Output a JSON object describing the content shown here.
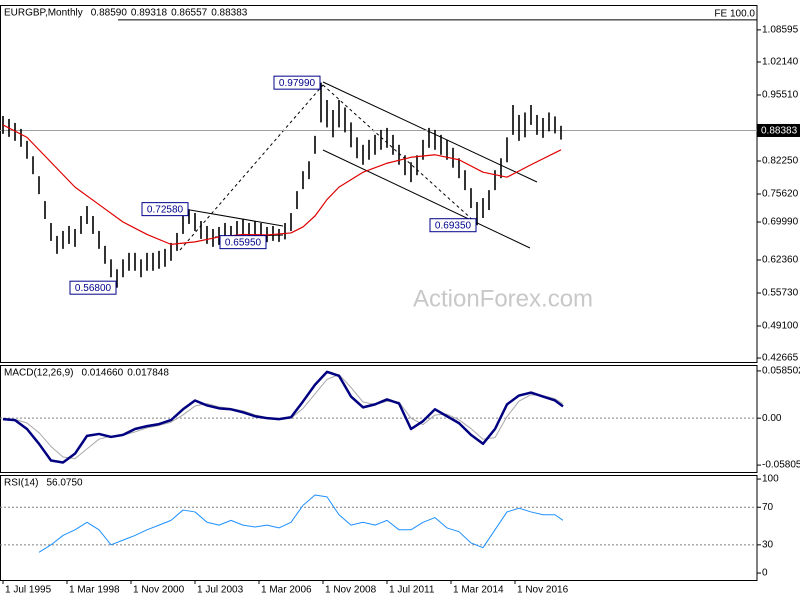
{
  "chart_data": [
    {
      "type": "hilo",
      "title": "EURGBP,Monthly",
      "readout": [
        {
          "value": 0.8859,
          "label": "0.88590"
        },
        {
          "value": 0.89318,
          "label": "0.89318"
        },
        {
          "value": 0.86557,
          "label": "0.86557"
        },
        {
          "value": 0.88383,
          "label": "0.88383"
        }
      ],
      "xlim": [
        -1.5,
        377
      ],
      "ylim": [
        0.4187,
        1.1359
      ],
      "yticks": [
        1.08595,
        {
          "value": 1.0214,
          "label": "1.02140"
        },
        {
          "value": 0.9551,
          "label": "0.95510"
        },
        {
          "value": 0.8225,
          "label": "0.82250"
        },
        {
          "value": 0.7562,
          "label": "0.75620"
        },
        {
          "value": 0.6999,
          "label": "0.69990"
        },
        {
          "value": 0.6236,
          "label": "0.62360"
        },
        {
          "value": 0.5573,
          "label": "0.55730"
        },
        {
          "value": 0.491,
          "label": "0.49100"
        },
        0.42665
      ],
      "color": "#000000",
      "x": [
        0,
        3,
        6,
        9,
        12,
        15,
        18,
        21,
        24,
        27,
        30,
        33,
        36,
        39,
        42,
        45,
        48,
        51,
        54,
        57,
        60,
        63,
        66,
        69,
        72,
        75,
        78,
        81,
        84,
        87,
        90,
        93,
        96,
        99,
        102,
        105,
        108,
        111,
        114,
        117,
        120,
        123,
        126,
        129,
        132,
        135,
        138,
        141,
        144,
        147,
        150,
        153,
        156,
        159,
        162,
        165,
        168,
        171,
        174,
        177,
        180,
        183,
        186,
        189,
        192,
        195,
        198,
        201,
        204,
        207,
        210,
        213,
        216,
        219,
        222,
        225,
        228,
        231,
        234,
        237,
        240,
        243,
        246,
        249,
        252,
        255,
        258,
        261,
        264,
        267,
        270,
        273,
        276,
        279
      ],
      "high": [
        0.913,
        0.907,
        0.899,
        0.887,
        0.863,
        0.832,
        0.792,
        0.742,
        0.698,
        0.672,
        0.682,
        0.692,
        0.686,
        0.712,
        0.732,
        0.712,
        0.682,
        0.652,
        0.625,
        0.605,
        0.625,
        0.638,
        0.638,
        0.625,
        0.638,
        0.638,
        0.642,
        0.646,
        0.658,
        0.678,
        0.712,
        0.7258,
        0.718,
        0.702,
        0.692,
        0.686,
        0.69,
        0.698,
        0.692,
        0.702,
        0.706,
        0.698,
        0.702,
        0.698,
        0.69,
        0.692,
        0.686,
        0.698,
        0.718,
        0.762,
        0.802,
        0.822,
        0.873,
        0.9799,
        0.945,
        0.925,
        0.945,
        0.93,
        0.9,
        0.87,
        0.855,
        0.865,
        0.875,
        0.885,
        0.889,
        0.875,
        0.855,
        0.834,
        0.82,
        0.834,
        0.865,
        0.889,
        0.885,
        0.875,
        0.865,
        0.849,
        0.828,
        0.804,
        0.768,
        0.74,
        0.748,
        0.764,
        0.804,
        0.828,
        0.87,
        0.935,
        0.915,
        0.92,
        0.935,
        0.915,
        0.909,
        0.92,
        0.912,
        0.89318
      ],
      "low": [
        0.877,
        0.871,
        0.863,
        0.851,
        0.827,
        0.796,
        0.756,
        0.706,
        0.662,
        0.636,
        0.646,
        0.656,
        0.65,
        0.676,
        0.696,
        0.676,
        0.646,
        0.616,
        0.589,
        0.568,
        0.589,
        0.602,
        0.602,
        0.589,
        0.602,
        0.602,
        0.606,
        0.61,
        0.622,
        0.642,
        0.676,
        0.696,
        0.682,
        0.666,
        0.656,
        0.65,
        0.654,
        0.662,
        0.656,
        0.666,
        0.67,
        0.662,
        0.666,
        0.662,
        0.6595,
        0.662,
        0.66,
        0.665,
        0.682,
        0.726,
        0.766,
        0.786,
        0.837,
        0.9,
        0.89,
        0.87,
        0.89,
        0.88,
        0.85,
        0.828,
        0.815,
        0.825,
        0.835,
        0.845,
        0.849,
        0.835,
        0.815,
        0.794,
        0.78,
        0.794,
        0.825,
        0.849,
        0.845,
        0.835,
        0.825,
        0.809,
        0.788,
        0.764,
        0.728,
        0.6935,
        0.708,
        0.724,
        0.764,
        0.788,
        0.82,
        0.875,
        0.863,
        0.87,
        0.895,
        0.875,
        0.869,
        0.882,
        0.878,
        0.86557
      ],
      "ma": {
        "color": "#e00000",
        "x": [
          0,
          12,
          24,
          36,
          48,
          60,
          72,
          84,
          96,
          108,
          120,
          132,
          144,
          150,
          156,
          162,
          168,
          180,
          192,
          204,
          216,
          228,
          240,
          252,
          264,
          279
        ],
        "values": [
          0.895,
          0.87,
          0.82,
          0.77,
          0.735,
          0.7,
          0.675,
          0.655,
          0.66,
          0.67,
          0.675,
          0.674,
          0.678,
          0.69,
          0.712,
          0.745,
          0.77,
          0.8,
          0.818,
          0.83,
          0.835,
          0.825,
          0.8,
          0.79,
          0.815,
          0.845
        ]
      },
      "current": {
        "value": 0.88383,
        "label": "0.88383"
      },
      "fe": {
        "value": 1.106,
        "label": "FE 100.0"
      },
      "annotations": [
        {
          "label": "0.97990",
          "x": 159,
          "y": 0.9799
        },
        {
          "label": "0.72580",
          "x": 93,
          "y": 0.7258
        },
        {
          "label": "0.65950",
          "x": 132,
          "y": 0.6595
        },
        {
          "label": "0.56800",
          "x": 57,
          "y": 0.568
        },
        {
          "label": "0.69350",
          "x": 237,
          "y": 0.6935
        }
      ],
      "watermark": "ActionForex.com"
    },
    {
      "type": "macd",
      "title": "MACD(12,26,9)",
      "readout": [
        {
          "value": 0.01466,
          "label": "0.014660"
        },
        {
          "value": 0.017848,
          "label": "0.017848"
        }
      ],
      "xlim": [
        -1.5,
        377
      ],
      "ylim": [
        -0.0666,
        0.0658
      ],
      "yticks": [
        0.058502,
        {
          "value": 0,
          "label": "0.00"
        },
        -0.058054
      ],
      "x": [
        0,
        6,
        12,
        18,
        24,
        30,
        36,
        42,
        48,
        54,
        60,
        66,
        72,
        78,
        84,
        90,
        96,
        102,
        108,
        114,
        120,
        126,
        132,
        138,
        144,
        150,
        156,
        162,
        168,
        174,
        180,
        186,
        192,
        198,
        204,
        210,
        216,
        222,
        228,
        234,
        240,
        246,
        252,
        258,
        264,
        270,
        276,
        280
      ],
      "series": [
        {
          "color": "#a8a8a8",
          "values": [
            -0.0005,
            -0.0015,
            -0.006,
            -0.018,
            -0.035,
            -0.048,
            -0.05,
            -0.038,
            -0.026,
            -0.022,
            -0.021,
            -0.017,
            -0.012,
            -0.009,
            -0.005,
            0.004,
            0.015,
            0.018,
            0.014,
            0.012,
            0.009,
            0.004,
            0.001,
            -0.001,
            0,
            0.012,
            0.03,
            0.048,
            0.054,
            0.038,
            0.02,
            0.017,
            0.021,
            0.02,
            0,
            -0.008,
            0.004,
            0.005,
            -0.002,
            -0.013,
            -0.026,
            -0.024,
            0.002,
            0.021,
            0.029,
            0.028,
            0.024,
            0.017848
          ]
        },
        {
          "color": "#000080",
          "values": [
            -0.0012,
            -0.0024,
            -0.0134,
            -0.0317,
            -0.0524,
            -0.0549,
            -0.0439,
            -0.0219,
            -0.0195,
            -0.0232,
            -0.0207,
            -0.0134,
            -0.0098,
            -0.0073,
            -0.0024,
            0.011,
            0.0219,
            0.0158,
            0.0122,
            0.011,
            0.0073,
            0.0024,
            0,
            -0.0012,
            0.0012,
            0.0207,
            0.0414,
            0.0573,
            0.0524,
            0.0268,
            0.0134,
            0.0171,
            0.0232,
            0.0183,
            -0.0134,
            -0.0037,
            0.011,
            0.0024,
            -0.0061,
            -0.0207,
            -0.0317,
            -0.0134,
            0.0171,
            0.028,
            0.0317,
            0.0268,
            0.0219,
            0.01466
          ]
        }
      ]
    },
    {
      "type": "rsi",
      "title": "RSI(14)",
      "readout": [
        {
          "value": 56.075,
          "label": "56.0750"
        }
      ],
      "xlim": [
        -1.5,
        377
      ],
      "ylim": [
        -7.4,
        104.3
      ],
      "yticks": [
        100,
        70,
        30,
        0
      ],
      "levels": [
        70,
        30
      ],
      "x": [
        0,
        6,
        12,
        18,
        24,
        30,
        36,
        42,
        48,
        54,
        60,
        66,
        72,
        78,
        84,
        90,
        96,
        102,
        108,
        114,
        120,
        126,
        132,
        138,
        144,
        150,
        156,
        162,
        168,
        174,
        180,
        186,
        192,
        198,
        204,
        210,
        216,
        222,
        228,
        234,
        240,
        246,
        252,
        258,
        264,
        270,
        276,
        280
      ],
      "series": [
        {
          "color": "#1e90ff",
          "values": [
            null,
            null,
            null,
            22,
            30,
            40,
            46,
            54,
            46,
            30,
            35,
            40,
            46,
            51,
            56,
            67,
            65,
            54,
            51,
            56,
            51,
            49,
            51,
            48,
            54,
            72,
            83,
            81,
            62,
            51,
            54,
            51,
            56,
            46,
            46,
            54,
            59,
            48,
            44,
            32,
            27,
            46,
            65,
            69,
            65,
            62,
            62,
            56.075
          ]
        }
      ],
      "xticks": [
        {
          "value": 0,
          "label": "1 Jul 1995"
        },
        {
          "value": 32,
          "label": "1 Mar 1998"
        },
        {
          "value": 64,
          "label": "1 Nov 2000"
        },
        {
          "value": 96,
          "label": "1 Jul 2003"
        },
        {
          "value": 128,
          "label": "1 Mar 2006"
        },
        {
          "value": 160,
          "label": "1 Nov 2008"
        },
        {
          "value": 192,
          "label": "1 Jul 2011"
        },
        {
          "value": 224,
          "label": "1 Mar 2014"
        },
        {
          "value": 256,
          "label": "1 Nov 2016"
        }
      ]
    }
  ]
}
